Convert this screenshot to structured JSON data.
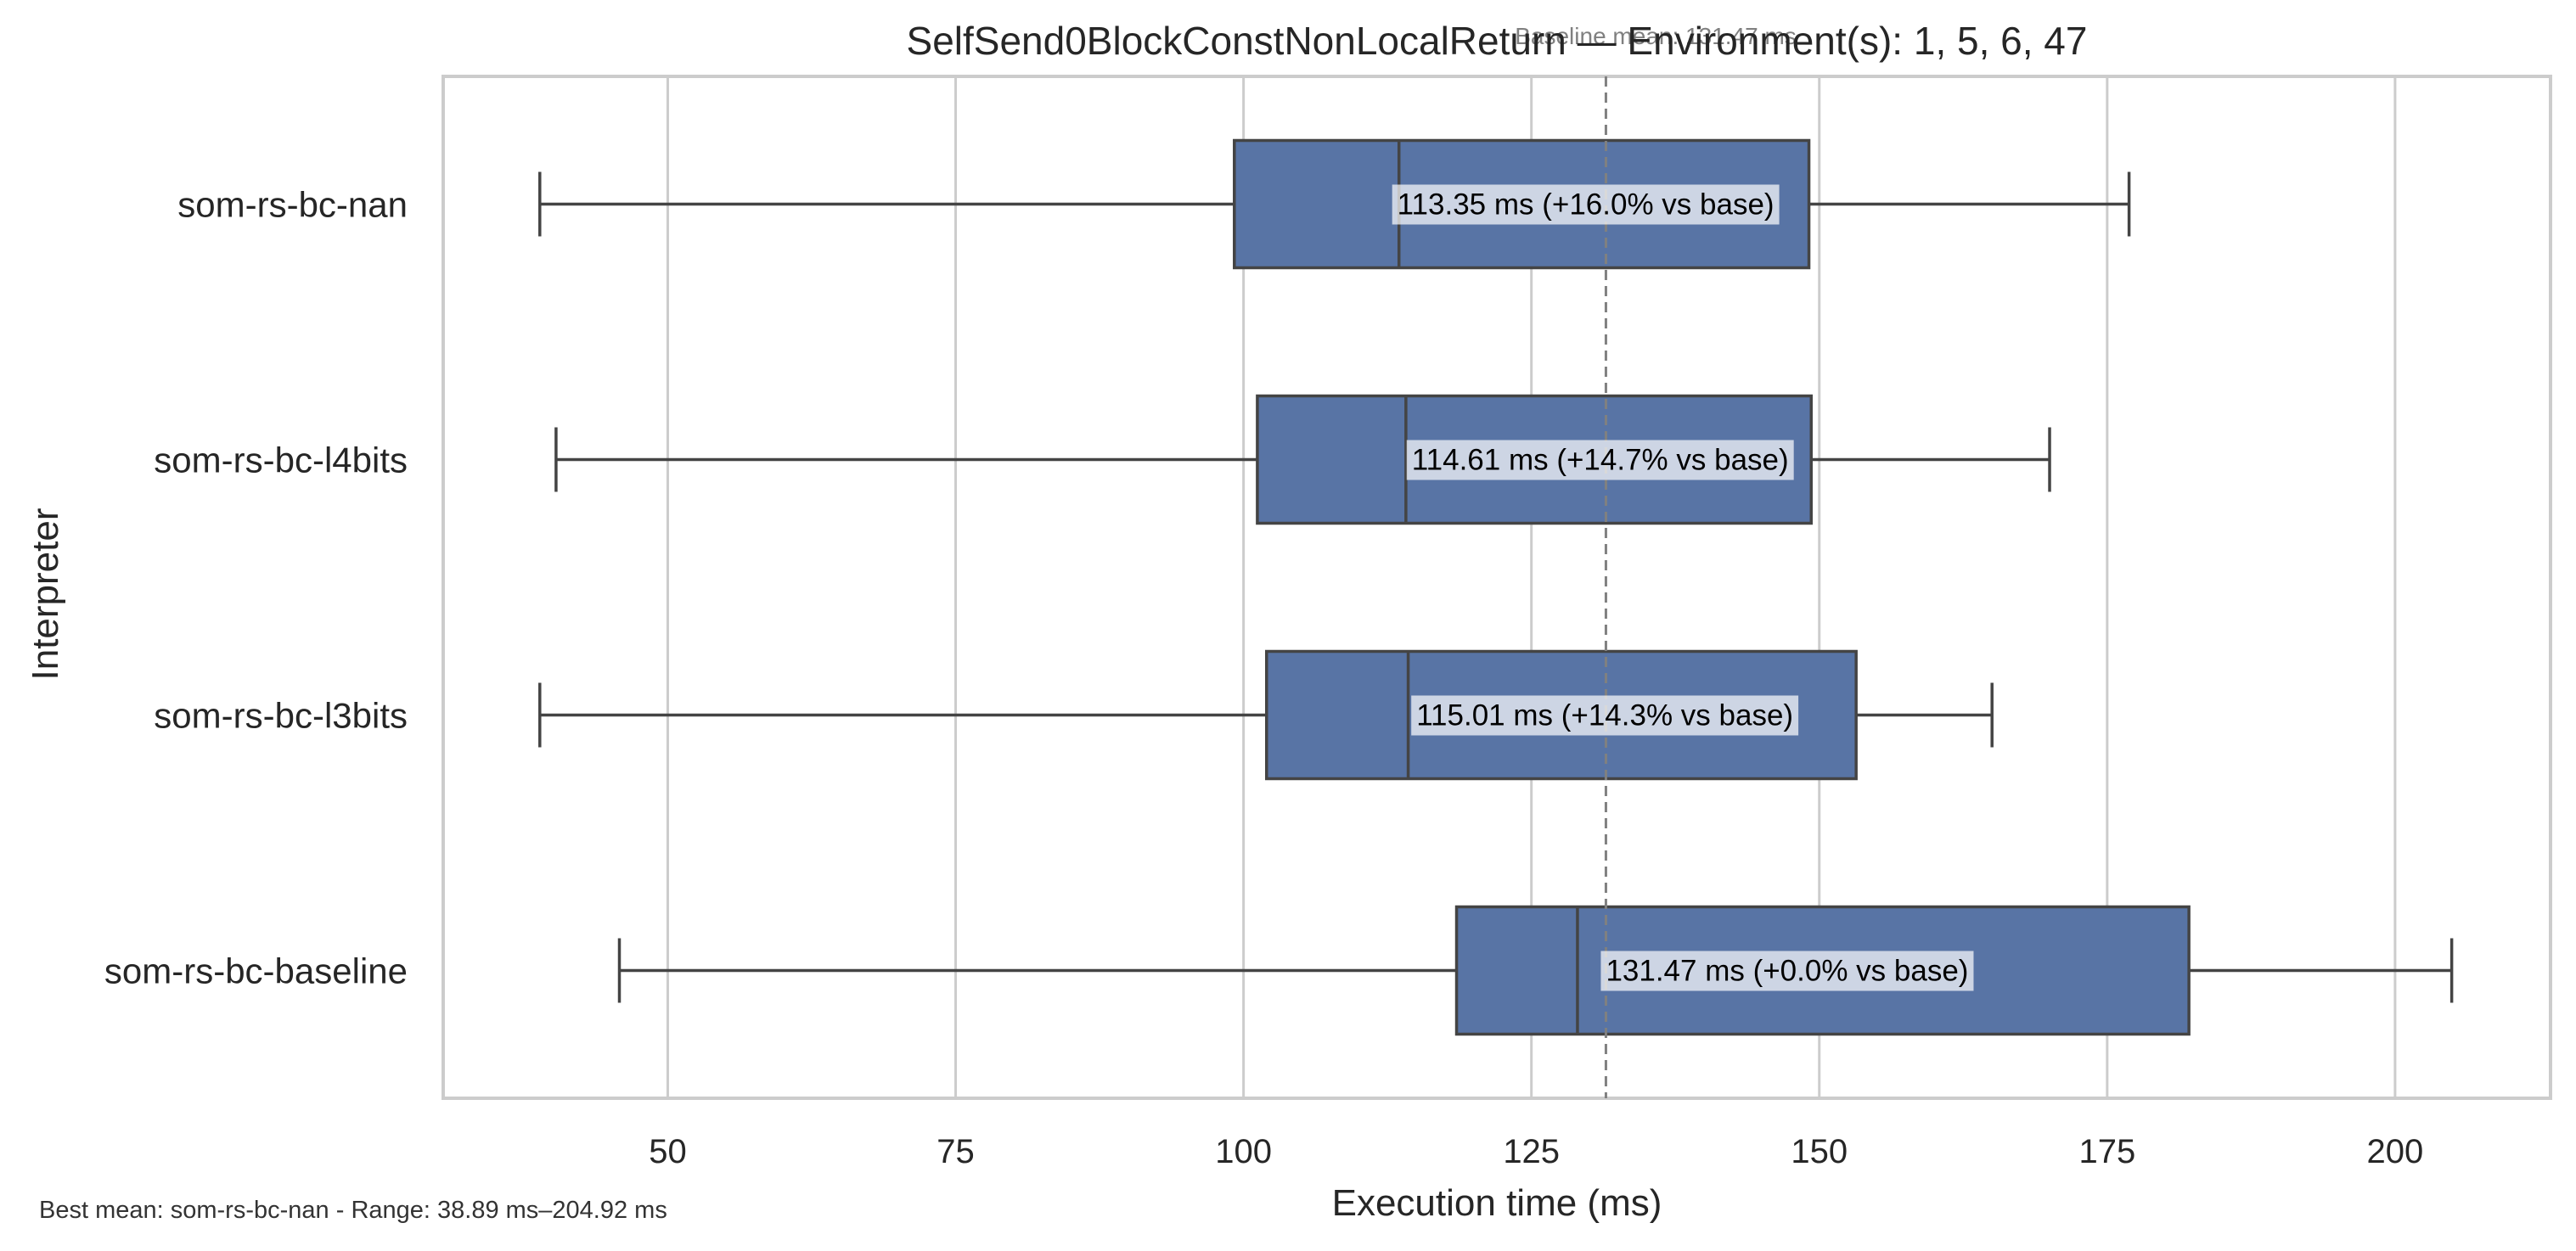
{
  "chart_data": {
    "type": "box",
    "orientation": "horizontal",
    "title": "SelfSend0BlockConstNonLocalReturn — Environment(s): 1, 5, 6, 47",
    "xlabel": "Execution time (ms)",
    "ylabel": "Interpreter",
    "xlim": [
      30.5,
      213.5
    ],
    "xticks": [
      50,
      75,
      100,
      125,
      150,
      175,
      200
    ],
    "grid": "x",
    "box_color": "#5874a5",
    "line_color": "#444444",
    "categories": [
      "som-rs-bc-nan",
      "som-rs-bc-l4bits",
      "som-rs-bc-l3bits",
      "som-rs-bc-baseline"
    ],
    "series": [
      {
        "name": "som-rs-bc-nan",
        "min": 38.89,
        "q1": 99.2,
        "median": 113.5,
        "q3": 149.1,
        "max": 176.9,
        "mean": 113.35,
        "annotation": "113.35 ms  (+16.0% vs base)"
      },
      {
        "name": "som-rs-bc-l4bits",
        "min": 40.3,
        "q1": 101.2,
        "median": 114.1,
        "q3": 149.3,
        "max": 170.0,
        "mean": 114.61,
        "annotation": "114.61 ms  (+14.7% vs base)"
      },
      {
        "name": "som-rs-bc-l3bits",
        "min": 38.89,
        "q1": 102.0,
        "median": 114.3,
        "q3": 153.2,
        "max": 165.0,
        "mean": 115.01,
        "annotation": "115.01 ms  (+14.3% vs base)"
      },
      {
        "name": "som-rs-bc-baseline",
        "min": 45.8,
        "q1": 118.5,
        "median": 129.0,
        "q3": 182.1,
        "max": 204.92,
        "mean": 131.47,
        "annotation": "131.47 ms  (+0.0% vs base)"
      }
    ],
    "baseline_mean": 131.47,
    "baseline_label": "Baseline mean: 131.47 ms",
    "footnote": "Best mean: som-rs-bc-nan - Range: 38.89 ms–204.92 ms"
  }
}
